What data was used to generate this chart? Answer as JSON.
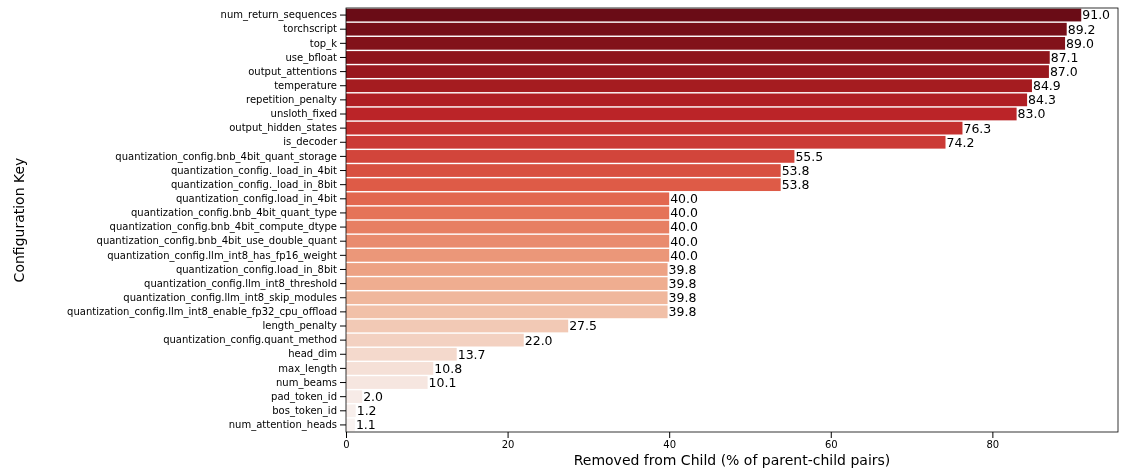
{
  "chart_data": {
    "type": "bar",
    "orientation": "horizontal",
    "xlabel": "Removed from Child (% of parent-child pairs)",
    "ylabel": "Configuration Key",
    "categories": [
      "num_return_sequences",
      "torchscript",
      "top_k",
      "use_bfloat",
      "output_attentions",
      "temperature",
      "repetition_penalty",
      "unsloth_fixed",
      "output_hidden_states",
      "is_decoder",
      "quantization_config.bnb_4bit_quant_storage",
      "quantization_config._load_in_4bit",
      "quantization_config._load_in_8bit",
      "quantization_config.load_in_4bit",
      "quantization_config.bnb_4bit_quant_type",
      "quantization_config.bnb_4bit_compute_dtype",
      "quantization_config.bnb_4bit_use_double_quant",
      "quantization_config.llm_int8_has_fp16_weight",
      "quantization_config.load_in_8bit",
      "quantization_config.llm_int8_threshold",
      "quantization_config.llm_int8_skip_modules",
      "quantization_config.llm_int8_enable_fp32_cpu_offload",
      "length_penalty",
      "quantization_config.quant_method",
      "head_dim",
      "max_length",
      "num_beams",
      "pad_token_id",
      "bos_token_id",
      "num_attention_heads"
    ],
    "values": [
      91.0,
      89.2,
      89.0,
      87.1,
      87.0,
      84.9,
      84.3,
      83.0,
      76.3,
      74.2,
      55.5,
      53.8,
      53.8,
      40.0,
      40.0,
      40.0,
      40.0,
      40.0,
      39.8,
      39.8,
      39.8,
      39.8,
      27.5,
      22.0,
      13.7,
      10.8,
      10.1,
      2.0,
      1.2,
      1.1
    ],
    "colors": [
      "#6a0c16",
      "#760f18",
      "#82121a",
      "#8e151c",
      "#99181e",
      "#a51c20",
      "#b01f24",
      "#bb2428",
      "#c4302e",
      "#cb3a35",
      "#d2453b",
      "#d85040",
      "#de5b47",
      "#e2674f",
      "#e57358",
      "#e77f63",
      "#e98b6e",
      "#eb9779",
      "#eda284",
      "#efad90",
      "#f0b79c",
      "#f1c0a8",
      "#f2c9b5",
      "#f3d1c1",
      "#f4d9cc",
      "#f5e0d7",
      "#f6e6e0",
      "#f7ebe7",
      "#f8efec",
      "#f9f3f1"
    ],
    "value_labels": [
      "91.0",
      "89.2",
      "89.0",
      "87.1",
      "87.0",
      "84.9",
      "84.3",
      "83.0",
      "76.3",
      "74.2",
      "55.5",
      "53.8",
      "53.8",
      "40.0",
      "40.0",
      "40.0",
      "40.0",
      "40.0",
      "39.8",
      "39.8",
      "39.8",
      "39.8",
      "27.5",
      "22.0",
      "13.7",
      "10.8",
      "10.1",
      "2.0",
      "1.2",
      "1.1"
    ],
    "xlim": [
      0,
      95.55
    ],
    "xticks": [
      0,
      20,
      40,
      60,
      80
    ]
  }
}
